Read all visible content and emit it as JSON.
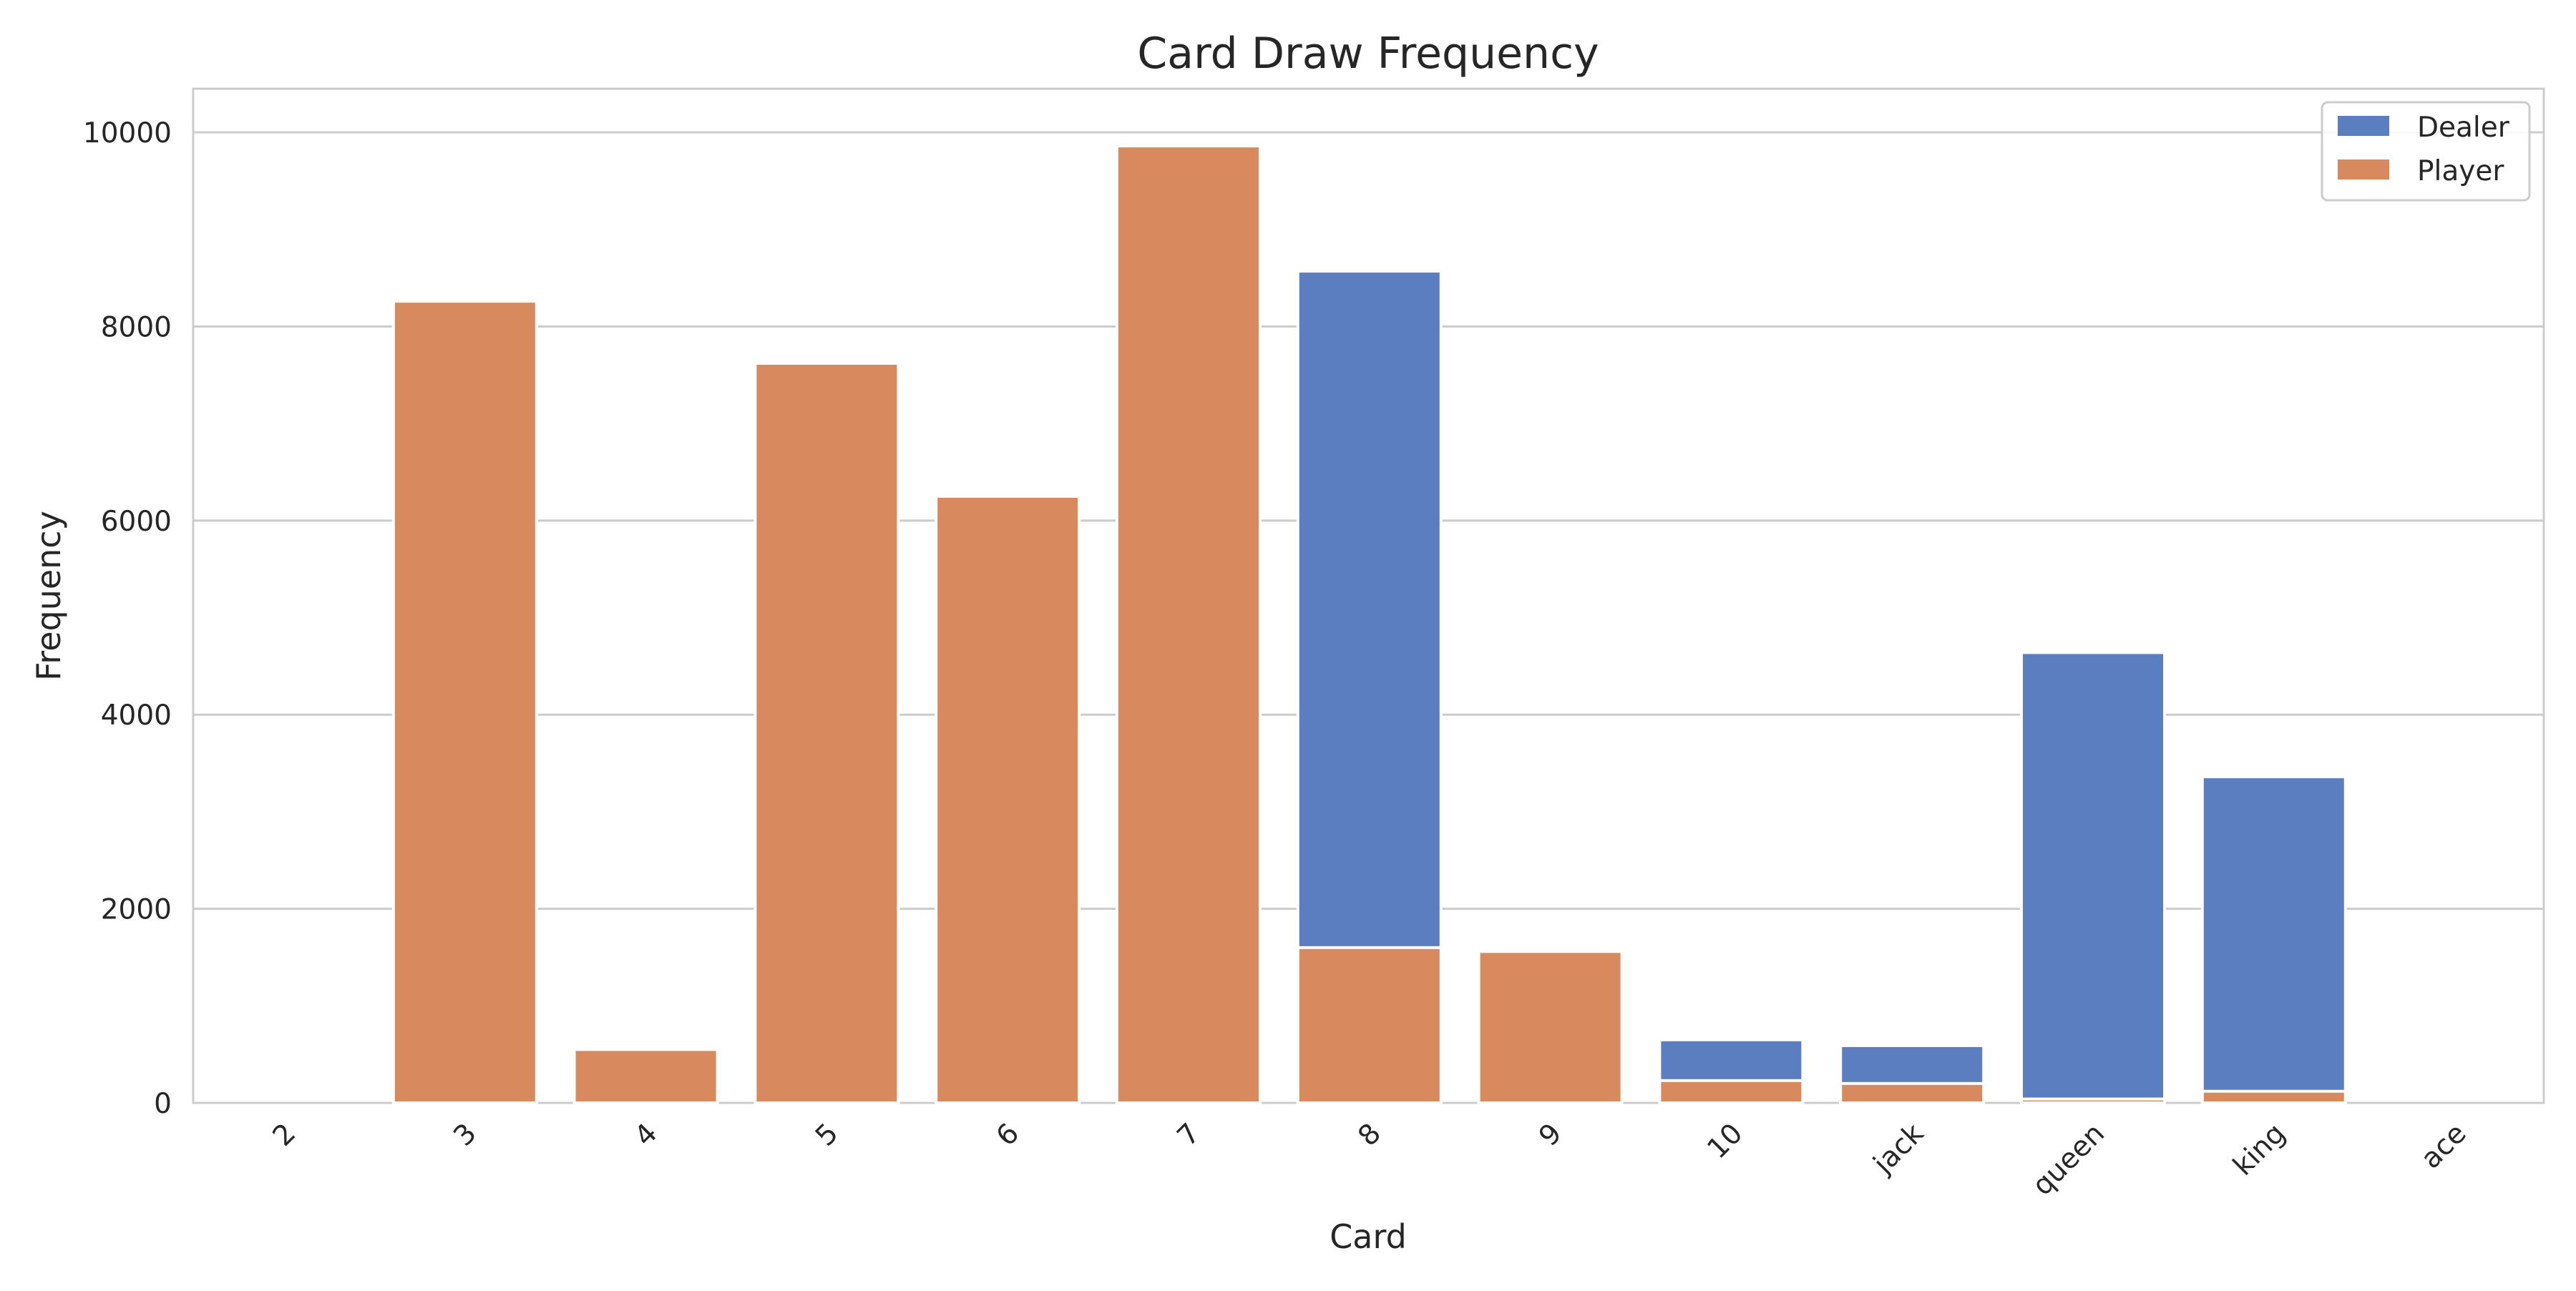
{
  "chart_data": {
    "type": "bar",
    "title": "Card Draw Frequency",
    "xlabel": "Card",
    "ylabel": "Frequency",
    "categories": [
      "2",
      "3",
      "4",
      "5",
      "6",
      "7",
      "8",
      "9",
      "10",
      "jack",
      "queen",
      "king",
      "ace"
    ],
    "series": [
      {
        "name": "Dealer",
        "color": "#5b7ec1",
        "values": [
          0,
          0,
          0,
          0,
          0,
          0,
          8570,
          0,
          650,
          590,
          4640,
          3360,
          0
        ]
      },
      {
        "name": "Player",
        "color": "#d9895e",
        "values": [
          0,
          8260,
          550,
          7620,
          6250,
          9860,
          1600,
          1560,
          230,
          200,
          40,
          120,
          0
        ]
      }
    ],
    "y_ticks": [
      0,
      2000,
      4000,
      6000,
      8000,
      10000
    ],
    "ylim": [
      0,
      10450
    ],
    "grid": true,
    "legend_position": "top-right",
    "overlay": true
  }
}
